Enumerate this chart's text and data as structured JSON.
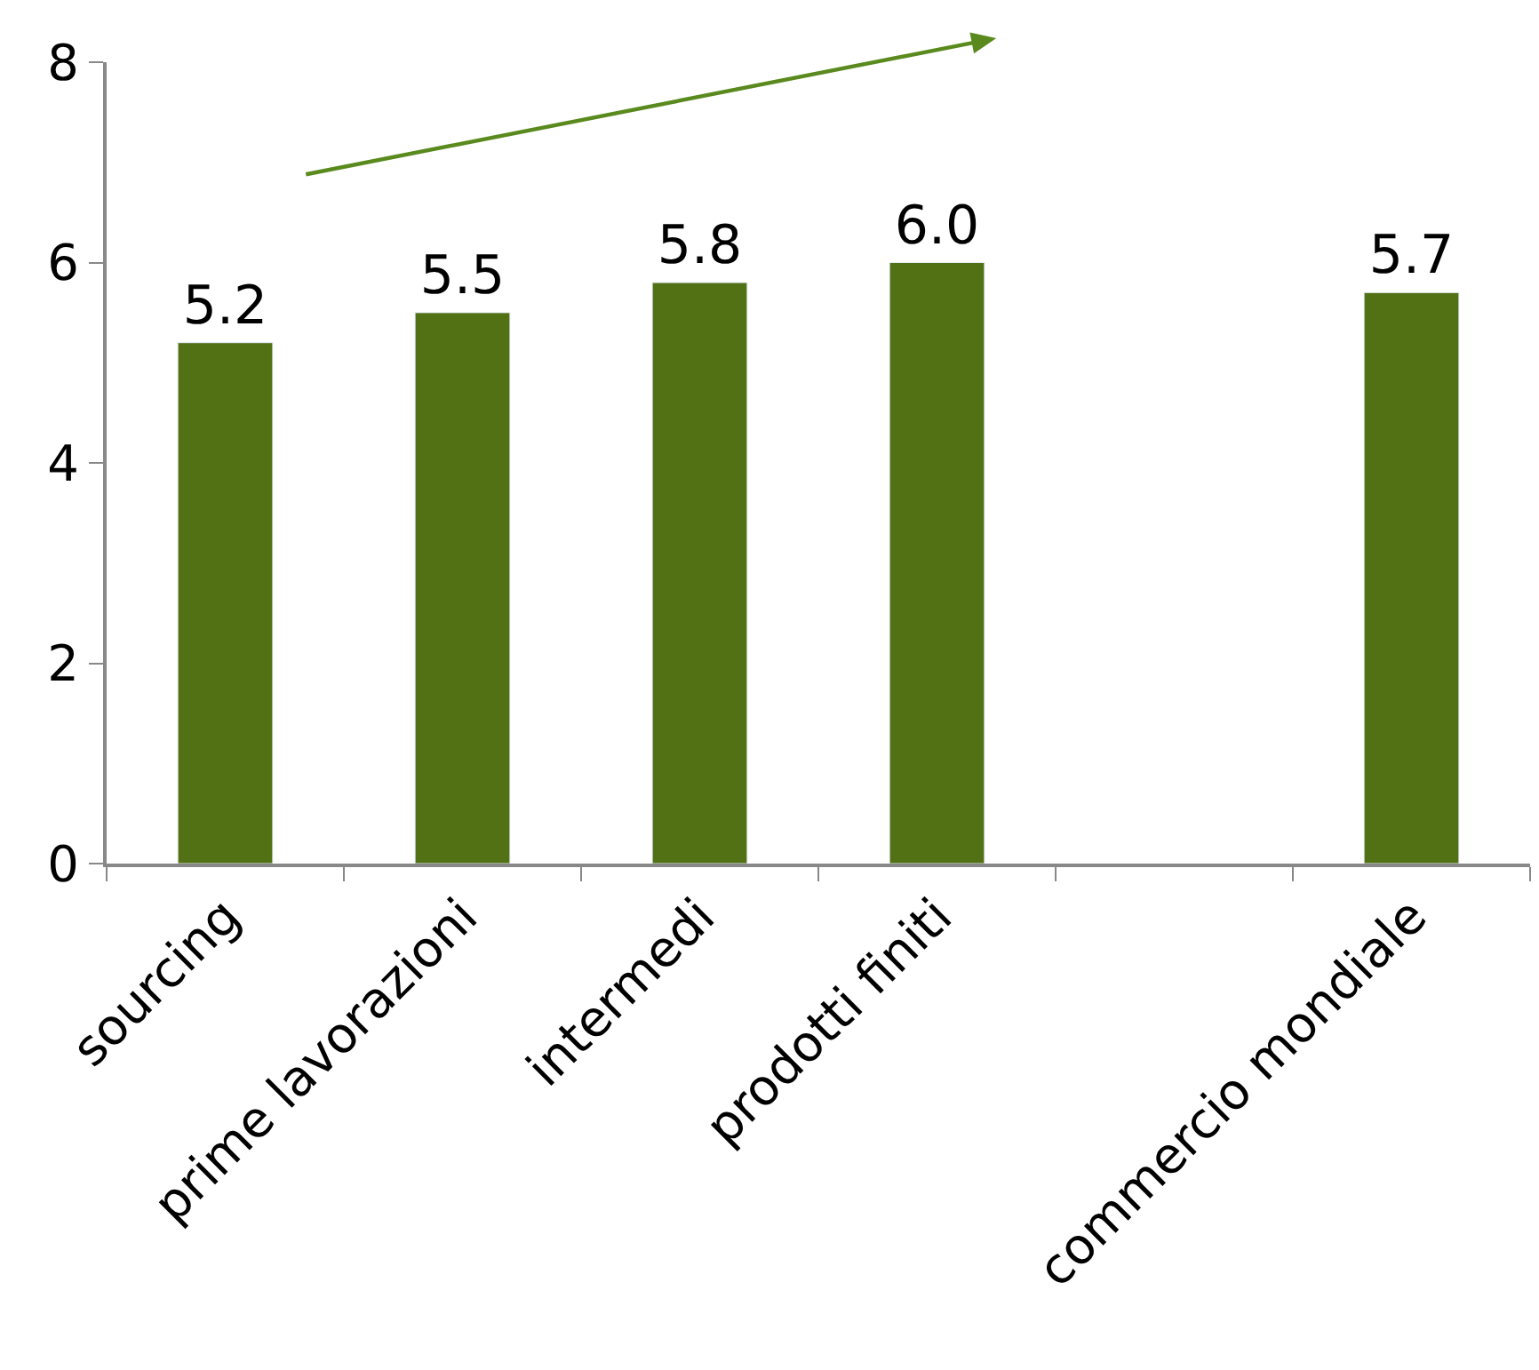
{
  "chart_data": {
    "type": "bar",
    "categories": [
      "sourcing",
      "prime lavorazioni",
      "intermedi",
      "prodotti finiti",
      null,
      "commercio mondiale"
    ],
    "values": [
      5.2,
      5.5,
      5.8,
      6.0,
      null,
      5.7
    ],
    "value_labels": [
      "5.2",
      "5.5",
      "5.8",
      "6.0",
      null,
      "5.7"
    ],
    "color": "#527114",
    "ylim": [
      0,
      8
    ],
    "yticks": [
      0,
      2,
      4,
      6,
      8
    ],
    "legend": false
  }
}
